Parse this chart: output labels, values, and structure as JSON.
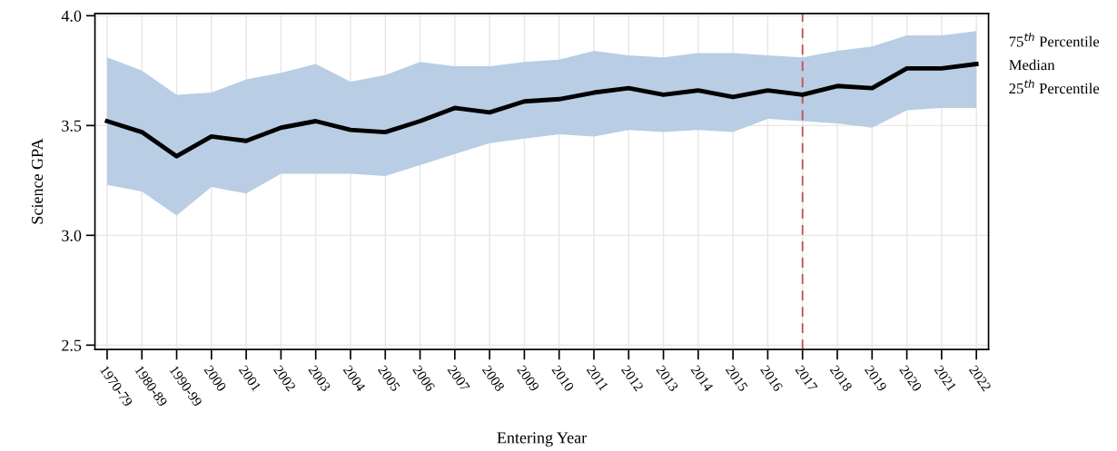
{
  "chart_data": {
    "type": "line",
    "xlabel": "Entering Year",
    "ylabel": "Science GPA",
    "categories": [
      "1970-79",
      "1980-89",
      "1990-99",
      "2000",
      "2001",
      "2002",
      "2003",
      "2004",
      "2005",
      "2006",
      "2007",
      "2008",
      "2009",
      "2010",
      "2011",
      "2012",
      "2013",
      "2014",
      "2015",
      "2016",
      "2017",
      "2018",
      "2019",
      "2020",
      "2021",
      "2022"
    ],
    "series": [
      {
        "color": "#000000",
        "values": [
          3.52,
          3.47,
          3.36,
          3.45,
          3.43,
          3.49,
          3.52,
          3.48,
          3.47,
          3.52,
          3.58,
          3.56,
          3.61,
          3.62,
          3.65,
          3.67,
          3.64,
          3.66,
          3.63,
          3.66,
          3.64,
          3.68,
          3.67,
          3.76,
          3.76,
          3.78
        ],
        "upper": [
          3.81,
          3.75,
          3.64,
          3.65,
          3.71,
          3.74,
          3.78,
          3.7,
          3.73,
          3.79,
          3.77,
          3.77,
          3.79,
          3.8,
          3.84,
          3.82,
          3.81,
          3.83,
          3.83,
          3.82,
          3.81,
          3.84,
          3.86,
          3.91,
          3.91,
          3.93
        ],
        "lower": [
          3.23,
          3.2,
          3.09,
          3.22,
          3.19,
          3.28,
          3.28,
          3.28,
          3.27,
          3.32,
          3.37,
          3.42,
          3.44,
          3.46,
          3.45,
          3.48,
          3.47,
          3.48,
          3.47,
          3.53,
          3.52,
          3.51,
          3.49,
          3.57,
          3.58,
          3.58
        ]
      }
    ],
    "ylim": [
      2.48,
      4.01
    ],
    "yticks": [
      {
        "value": 2.5,
        "label": "2.5"
      },
      {
        "value": 3.0,
        "label": "3.0"
      },
      {
        "value": 3.5,
        "label": "3.5"
      },
      {
        "value": 4.0,
        "label": "4.0"
      }
    ],
    "grid": true,
    "ref_lines": [
      {
        "axis": "x",
        "value": "2017",
        "label": null,
        "color": "#c0504d",
        "line_style": "dashed"
      }
    ],
    "annotations": [
      "75$^{th}$ Percentile",
      "Median",
      "25$^{th}$ Percentile"
    ]
  }
}
